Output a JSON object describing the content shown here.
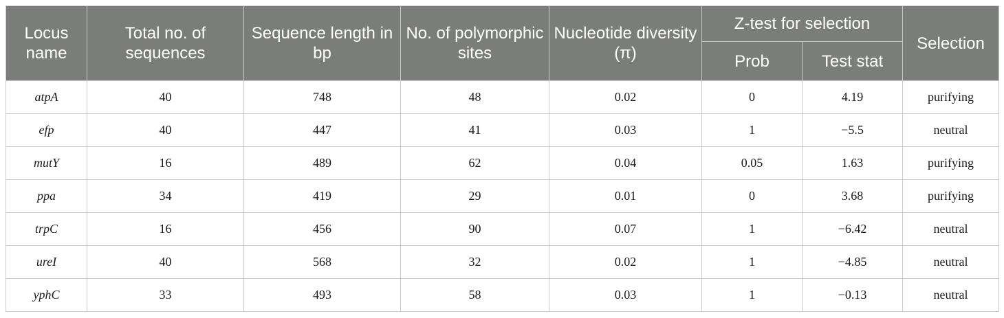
{
  "header": {
    "locus_name": "Locus name",
    "total_sequences": "Total no. of sequences",
    "sequence_length": "Sequence length in bp",
    "polymorphic_sites": "No. of polymorphic sites",
    "nucleotide_diversity": "Nucleotide diversity (π)",
    "ztest_group": "Z-test for selection",
    "prob": "Prob",
    "test_stat": "Test stat",
    "selection": "Selection"
  },
  "rows": [
    {
      "locus": "atpA",
      "total": "40",
      "length": "748",
      "polymorphic": "48",
      "diversity": "0.02",
      "prob": "0",
      "stat": "4.19",
      "selection": "purifying"
    },
    {
      "locus": "efp",
      "total": "40",
      "length": "447",
      "polymorphic": "41",
      "diversity": "0.03",
      "prob": "1",
      "stat": "−5.5",
      "selection": "neutral"
    },
    {
      "locus": "mutY",
      "total": "16",
      "length": "489",
      "polymorphic": "62",
      "diversity": "0.04",
      "prob": "0.05",
      "stat": "1.63",
      "selection": "purifying"
    },
    {
      "locus": "ppa",
      "total": "34",
      "length": "419",
      "polymorphic": "29",
      "diversity": "0.01",
      "prob": "0",
      "stat": "3.68",
      "selection": "purifying"
    },
    {
      "locus": "trpC",
      "total": "16",
      "length": "456",
      "polymorphic": "90",
      "diversity": "0.07",
      "prob": "1",
      "stat": "−6.42",
      "selection": "neutral"
    },
    {
      "locus": "ureI",
      "total": "40",
      "length": "568",
      "polymorphic": "32",
      "diversity": "0.02",
      "prob": "1",
      "stat": "−4.85",
      "selection": "neutral"
    },
    {
      "locus": "yphC",
      "total": "33",
      "length": "493",
      "polymorphic": "58",
      "diversity": "0.03",
      "prob": "1",
      "stat": "−0.13",
      "selection": "neutral"
    }
  ]
}
